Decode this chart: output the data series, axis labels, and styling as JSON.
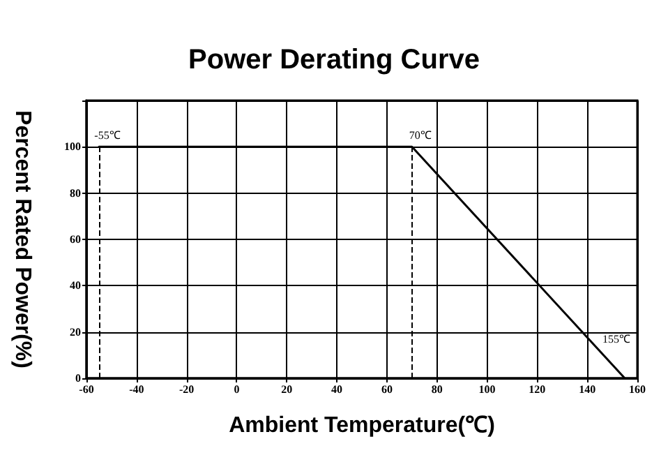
{
  "chart_data": {
    "type": "line",
    "title": "Power Derating Curve",
    "xlabel": "Ambient Temperature(℃)",
    "ylabel": "Percent Rated Power(%)",
    "series": [
      {
        "color": "#000000",
        "x": [
          -55,
          70,
          155
        ],
        "values": [
          100,
          100,
          0
        ]
      }
    ],
    "xlim": [
      -60,
      160
    ],
    "xticks": [
      -60,
      -40,
      -20,
      0,
      20,
      40,
      60,
      80,
      100,
      120,
      140,
      160
    ],
    "ylim": [
      0,
      120
    ],
    "yticks": [
      0,
      20,
      40,
      60,
      80,
      100,
      {
        "value": 120,
        "label": null
      }
    ],
    "grid": true,
    "marker": "none",
    "line_style": "solid",
    "ref_lines": [
      {
        "axis": "x",
        "value": -55,
        "label": "-55℃",
        "line_style": "dashed"
      },
      {
        "axis": "x",
        "value": 70,
        "label": "70℃",
        "line_style": "dashed"
      }
    ],
    "annotations": [
      {
        "text": "155℃",
        "x": 155,
        "y": 0
      }
    ]
  }
}
